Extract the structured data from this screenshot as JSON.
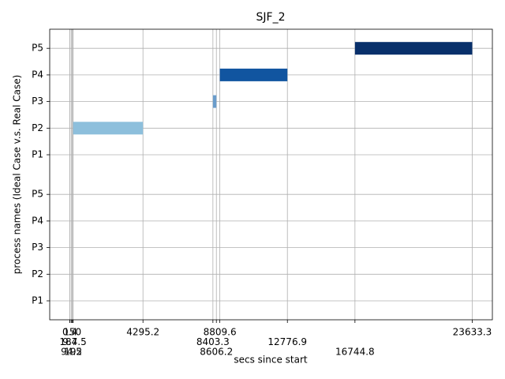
{
  "chart_data": {
    "type": "gantt",
    "title": "SJF_2",
    "xlabel": "secs since start",
    "ylabel": "process names (Ideal Case v.s. Real Case)",
    "xlim": [
      -1181.7,
      24815
    ],
    "xticks": [
      0.4,
      9.4,
      94.5,
      150,
      187.5,
      192,
      4295.2,
      8403.3,
      8606.2,
      8809.6,
      12776.9,
      16744.8,
      23633.3
    ],
    "grid": true,
    "groups": [
      {
        "categories": [
          "P1",
          "P2",
          "P3",
          "P4",
          "P5"
        ],
        "values": [
          null,
          null,
          null,
          null,
          null
        ],
        "colors": [
          null,
          null,
          null,
          null,
          null
        ]
      },
      {
        "categories": [
          "P1",
          "P2",
          "P3",
          "P4",
          "P5"
        ],
        "values": [
          null,
          [
            192,
            4295.2
          ],
          [
            8403.3,
            8606.2
          ],
          [
            8809.6,
            12776.9
          ],
          [
            16744.8,
            23633.3
          ]
        ],
        "colors": [
          null,
          "#8dbfdc",
          "#6a9ccb",
          "#1155a0",
          "#08306b"
        ]
      }
    ]
  }
}
